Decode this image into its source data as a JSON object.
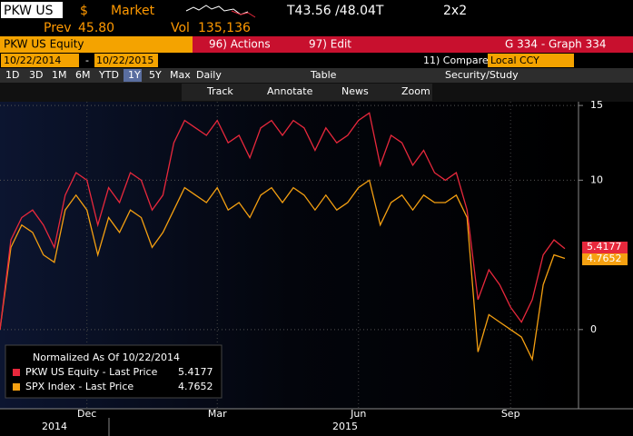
{
  "ui": {
    "ticker": "PKW US",
    "currency": "$",
    "market": "Market",
    "quote": "T43.56 /48.04T",
    "size": "2x2",
    "prev_label": "Prev",
    "prev": "45.80",
    "vol_label": "Vol",
    "vol": "135,136",
    "security": "PKW US Equity",
    "actions": "96) Actions",
    "edit": "97) Edit",
    "graph": "G 334 - Graph 334",
    "start_date": "10/22/2014",
    "date_sep": "-",
    "end_date": "10/22/2015",
    "compare": "11) Compare",
    "ccy": "Local CCY",
    "ranges": [
      "1D",
      "3D",
      "1M",
      "6M",
      "YTD",
      "1Y",
      "5Y",
      "Max"
    ],
    "period": "Daily",
    "table": "Table",
    "study": "Security/Study",
    "tools": [
      "Track",
      "Annotate",
      "News",
      "Zoom"
    ]
  },
  "chart_data": {
    "type": "line",
    "legend_title": "Normalized As Of 10/22/2014",
    "legend": "lower left",
    "grid": true,
    "categories": [
      null,
      null,
      null,
      null,
      null,
      null,
      null,
      null,
      "Dec",
      null,
      null,
      null,
      null,
      null,
      null,
      null,
      null,
      null,
      null,
      null,
      "Mar",
      null,
      null,
      null,
      null,
      null,
      null,
      null,
      null,
      null,
      null,
      null,
      null,
      "Jun",
      null,
      null,
      null,
      null,
      null,
      null,
      null,
      null,
      null,
      null,
      null,
      null,
      null,
      "Sep",
      null,
      null,
      null,
      null,
      null
    ],
    "year_labels": [
      "2014",
      "2015"
    ],
    "series": [
      {
        "name": "PKW US Equity - Last Price",
        "color": "#e8283c",
        "values": [
          0,
          6,
          7.5,
          8,
          7,
          5.5,
          9,
          10.5,
          10,
          7,
          9.5,
          8.5,
          10.5,
          10,
          8,
          9,
          12.5,
          14,
          13.5,
          13,
          14,
          12.5,
          13,
          11.5,
          13.5,
          14,
          13,
          14,
          13.5,
          12,
          13.5,
          12.5,
          13,
          14,
          14.5,
          11,
          13,
          12.5,
          11,
          12,
          10.5,
          10,
          10.5,
          8,
          2,
          4,
          3,
          1.5,
          0.5,
          2,
          5,
          6,
          5.4177
        ]
      },
      {
        "name": "SPX Index - Last Price",
        "color": "#f5a011",
        "values": [
          0,
          5.5,
          7,
          6.5,
          5,
          4.5,
          8,
          9,
          8,
          5,
          7.5,
          6.5,
          8,
          7.5,
          5.5,
          6.5,
          8,
          9.5,
          9,
          8.5,
          9.5,
          8,
          8.5,
          7.5,
          9,
          9.5,
          8.5,
          9.5,
          9,
          8,
          9,
          8,
          8.5,
          9.5,
          10,
          7,
          8.5,
          9,
          8,
          9,
          8.5,
          8.5,
          9,
          7.5,
          -1.5,
          1,
          0.5,
          0,
          -0.5,
          -2,
          3,
          5,
          4.7652
        ]
      }
    ],
    "ylim": [
      -5.3,
      15.25
    ],
    "yticks": [
      0,
      10,
      15
    ]
  }
}
